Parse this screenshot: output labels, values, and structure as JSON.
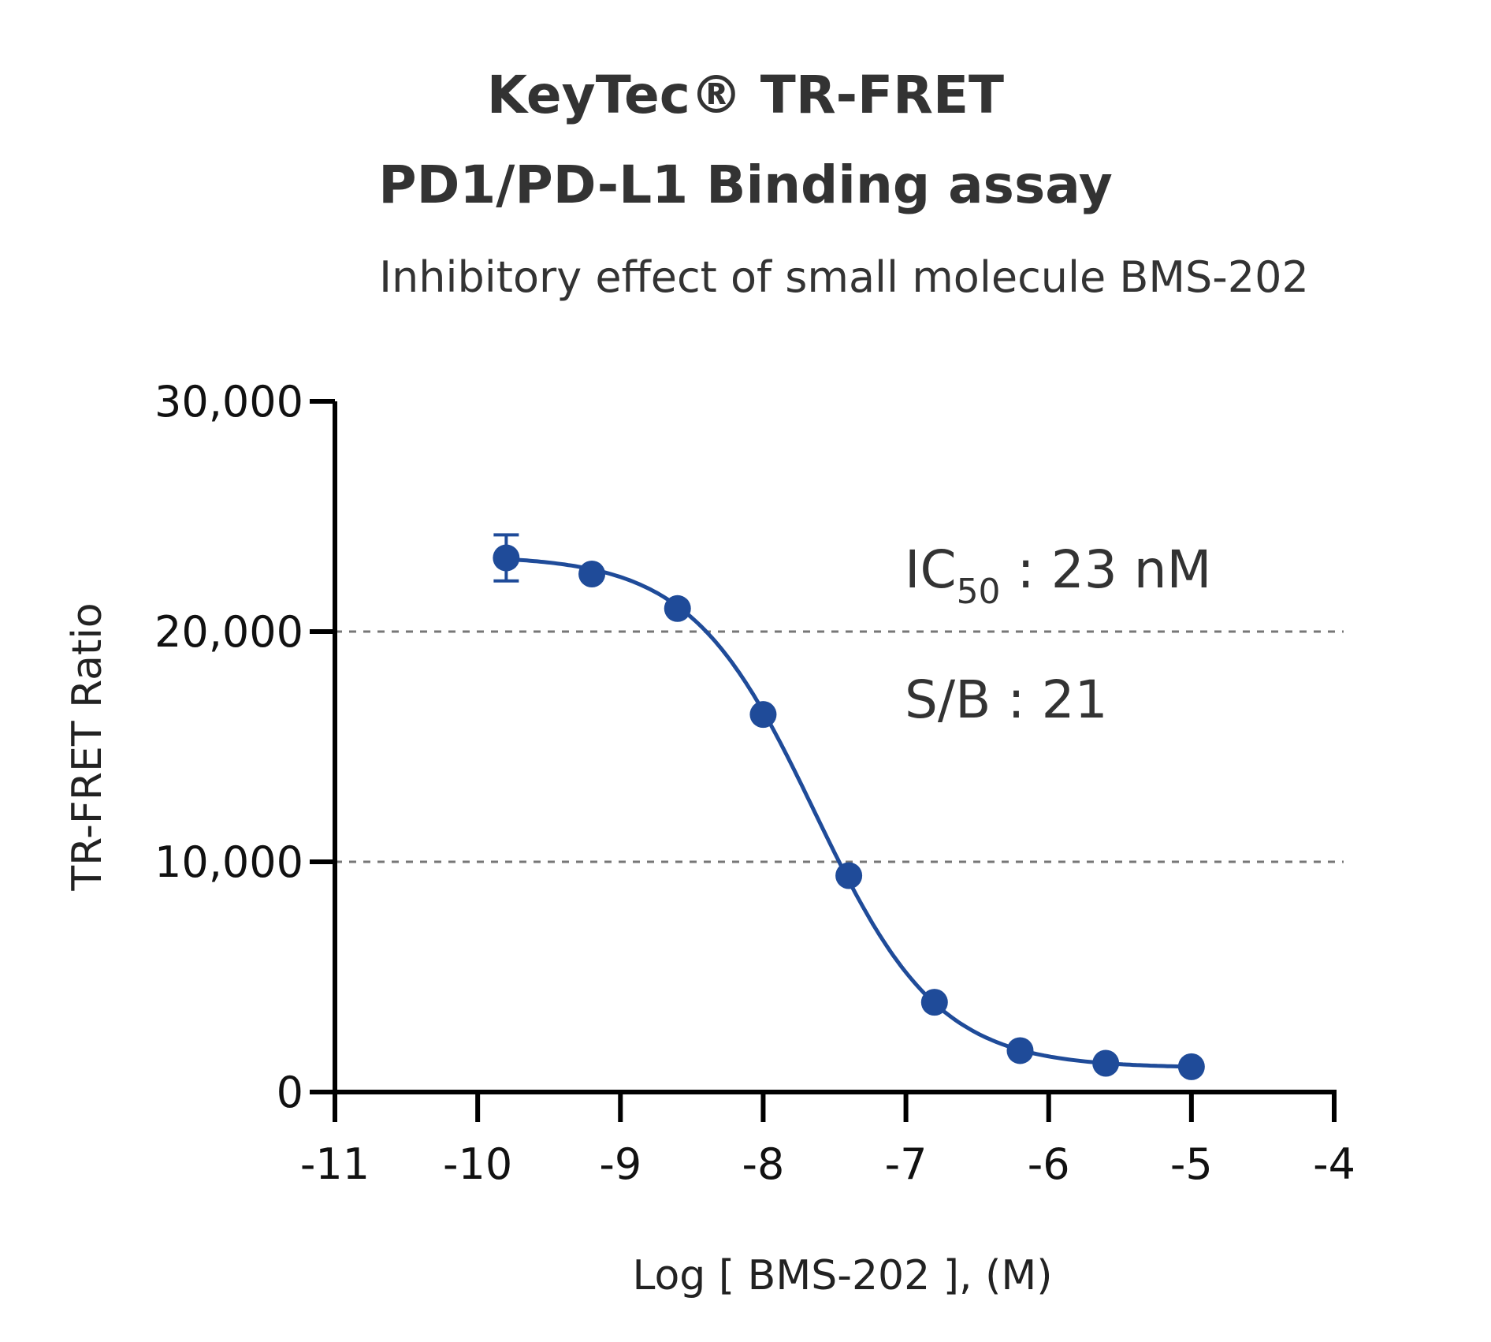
{
  "chart_data": {
    "type": "scatter",
    "title": "KeyTec® TR-FRET",
    "subtitle": "PD1/PD-L1 Binding assay",
    "subtitle2": "Inhibitory effect of small molecule BMS-202",
    "xlabel": "Log [ BMS-202 ], (M)",
    "ylabel": "TR-FRET Ratio",
    "xlim": [
      -11,
      -4
    ],
    "ylim": [
      0,
      30000
    ],
    "xticks": [
      -11,
      -10,
      -9,
      -8,
      -7,
      -6,
      -5,
      -4
    ],
    "xtick_labels": [
      "-11",
      "-10",
      "-9",
      "-8",
      "-7",
      "-6",
      "-5",
      "-4"
    ],
    "yticks": [
      0,
      10000,
      20000,
      30000
    ],
    "ytick_labels": [
      "0",
      "10,000",
      "20,000",
      "30,000"
    ],
    "grid": "dashed horizontal lines at 10,000 and 20,000",
    "series": [
      {
        "x": [
          -9.8,
          -9.2,
          -8.6,
          -8.0,
          -7.4,
          -6.8,
          -6.2,
          -5.6,
          -5.0
        ],
        "y": [
          23200,
          22500,
          21000,
          16400,
          9400,
          3900,
          1800,
          1250,
          1100
        ],
        "error": [
          1000,
          0,
          0,
          0,
          0,
          0,
          0,
          0,
          0
        ],
        "color": "#1f4b99"
      }
    ],
    "fit": {
      "type": "4PL",
      "top": 23300,
      "bottom": 1050,
      "logIC50": -7.64,
      "hill": 1.0
    },
    "annotations": [
      {
        "main": "IC",
        "sub": "50",
        "rest": " : 23 nM"
      },
      {
        "main": "S/B : 21"
      }
    ]
  }
}
